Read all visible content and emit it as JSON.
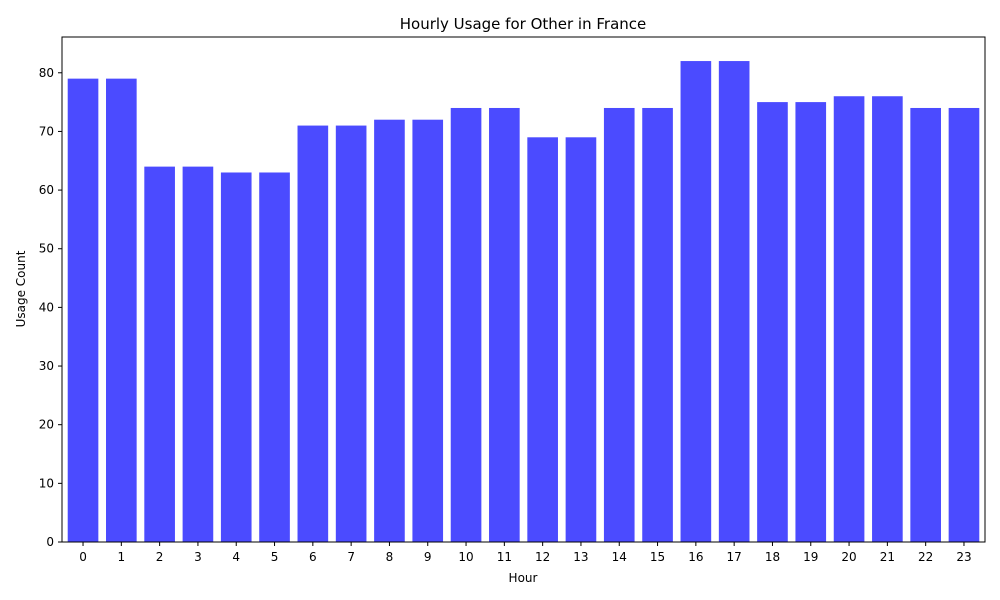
{
  "chart_data": {
    "type": "bar",
    "title": "Hourly Usage for Other in France",
    "xlabel": "Hour",
    "ylabel": "Usage Count",
    "categories": [
      "0",
      "1",
      "2",
      "3",
      "4",
      "5",
      "6",
      "7",
      "8",
      "9",
      "10",
      "11",
      "12",
      "13",
      "14",
      "15",
      "16",
      "17",
      "18",
      "19",
      "20",
      "21",
      "22",
      "23"
    ],
    "values": [
      79,
      79,
      64,
      64,
      63,
      63,
      71,
      71,
      72,
      72,
      74,
      74,
      69,
      69,
      74,
      74,
      82,
      82,
      75,
      75,
      76,
      76,
      74,
      74
    ],
    "ylim": [
      0,
      86.1
    ],
    "yticks": [
      0,
      10,
      20,
      30,
      40,
      50,
      60,
      70,
      80
    ],
    "bar_color": "#4b4bff",
    "grid": false,
    "legend": "none"
  }
}
